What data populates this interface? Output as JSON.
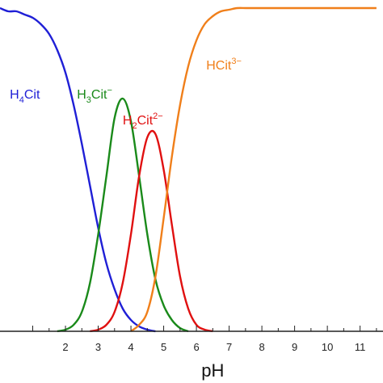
{
  "chart_data": {
    "type": "line",
    "title": "",
    "xlabel": "pH",
    "ylabel": "",
    "xlim": [
      0.0,
      11.7
    ],
    "ylim": [
      0.0,
      1.0
    ],
    "x_ticks": [
      "2",
      "3",
      "4",
      "5",
      "6",
      "7",
      "8",
      "9",
      "10",
      "11"
    ],
    "grid": false,
    "legend": "none",
    "x": [
      0.0,
      0.25,
      0.5,
      0.75,
      1.0,
      1.25,
      1.5,
      1.75,
      2.0,
      2.25,
      2.5,
      2.75,
      3.0,
      3.25,
      3.5,
      3.75,
      4.0,
      4.25,
      4.5,
      4.75,
      5.0,
      5.25,
      5.5,
      5.75,
      6.0,
      6.25,
      6.5,
      6.75,
      7.0,
      7.25,
      7.5,
      7.75,
      8.0,
      8.25,
      8.5,
      8.75,
      9.0,
      9.25,
      9.5,
      9.75,
      10.0,
      10.25,
      10.5,
      10.75,
      11.0,
      11.25,
      11.5
    ],
    "series": [
      {
        "name": "H4Cit",
        "label_main": "H",
        "label_sub": "4",
        "label_rest": "Cit",
        "label_sup": "",
        "color": "#1f1fd6",
        "values": [
          1.0,
          0.99,
          0.99,
          0.98,
          0.97,
          0.95,
          0.92,
          0.87,
          0.8,
          0.7,
          0.58,
          0.45,
          0.32,
          0.21,
          0.13,
          0.07,
          0.035,
          0.015,
          0.005,
          0.0,
          0.0,
          0.0,
          0.0,
          0.0,
          0.0,
          0.0,
          0.0,
          0.0,
          0.0,
          0.0,
          0.0,
          0.0,
          0.0,
          0.0,
          0.0,
          0.0,
          0.0,
          0.0,
          0.0,
          0.0,
          0.0,
          0.0,
          0.0,
          0.0,
          0.0,
          0.0,
          0.0
        ]
      },
      {
        "name": "H3Cit−",
        "label_main": "H",
        "label_sub": "3",
        "label_rest": "Cit",
        "label_sup": "−",
        "color": "#1a8a1a",
        "values": [
          0.0,
          0.0,
          0.0,
          0.0,
          0.0,
          0.0,
          0.0,
          0.0,
          0.005,
          0.02,
          0.06,
          0.15,
          0.3,
          0.48,
          0.66,
          0.72,
          0.65,
          0.48,
          0.3,
          0.16,
          0.08,
          0.035,
          0.01,
          0.0,
          0.0,
          0.0,
          0.0,
          0.0,
          0.0,
          0.0,
          0.0,
          0.0,
          0.0,
          0.0,
          0.0,
          0.0,
          0.0,
          0.0,
          0.0,
          0.0,
          0.0,
          0.0,
          0.0,
          0.0,
          0.0,
          0.0,
          0.0
        ]
      },
      {
        "name": "H2Cit2−",
        "label_main": "H",
        "label_sub": "2",
        "label_rest": "Cit",
        "label_sup": "2−",
        "color": "#e01010",
        "values": [
          0.0,
          0.0,
          0.0,
          0.0,
          0.0,
          0.0,
          0.0,
          0.0,
          0.0,
          0.0,
          0.0,
          0.0,
          0.005,
          0.02,
          0.06,
          0.15,
          0.3,
          0.48,
          0.6,
          0.61,
          0.5,
          0.33,
          0.17,
          0.07,
          0.02,
          0.005,
          0.0,
          0.0,
          0.0,
          0.0,
          0.0,
          0.0,
          0.0,
          0.0,
          0.0,
          0.0,
          0.0,
          0.0,
          0.0,
          0.0,
          0.0,
          0.0,
          0.0,
          0.0,
          0.0,
          0.0,
          0.0
        ]
      },
      {
        "name": "HCit3−",
        "label_main": "HCit",
        "label_sub": "",
        "label_rest": "",
        "label_sup": "3−",
        "color": "#f07f1a",
        "values": [
          0.0,
          0.0,
          0.0,
          0.0,
          0.0,
          0.0,
          0.0,
          0.0,
          0.0,
          0.0,
          0.0,
          0.0,
          0.0,
          0.0,
          0.0,
          0.0,
          0.0,
          0.02,
          0.06,
          0.17,
          0.35,
          0.54,
          0.7,
          0.82,
          0.9,
          0.95,
          0.975,
          0.99,
          0.995,
          1.0,
          1.0,
          1.0,
          1.0,
          1.0,
          1.0,
          1.0,
          1.0,
          1.0,
          1.0,
          1.0,
          1.0,
          1.0,
          1.0,
          1.0,
          1.0,
          1.0,
          1.0
        ]
      }
    ]
  }
}
